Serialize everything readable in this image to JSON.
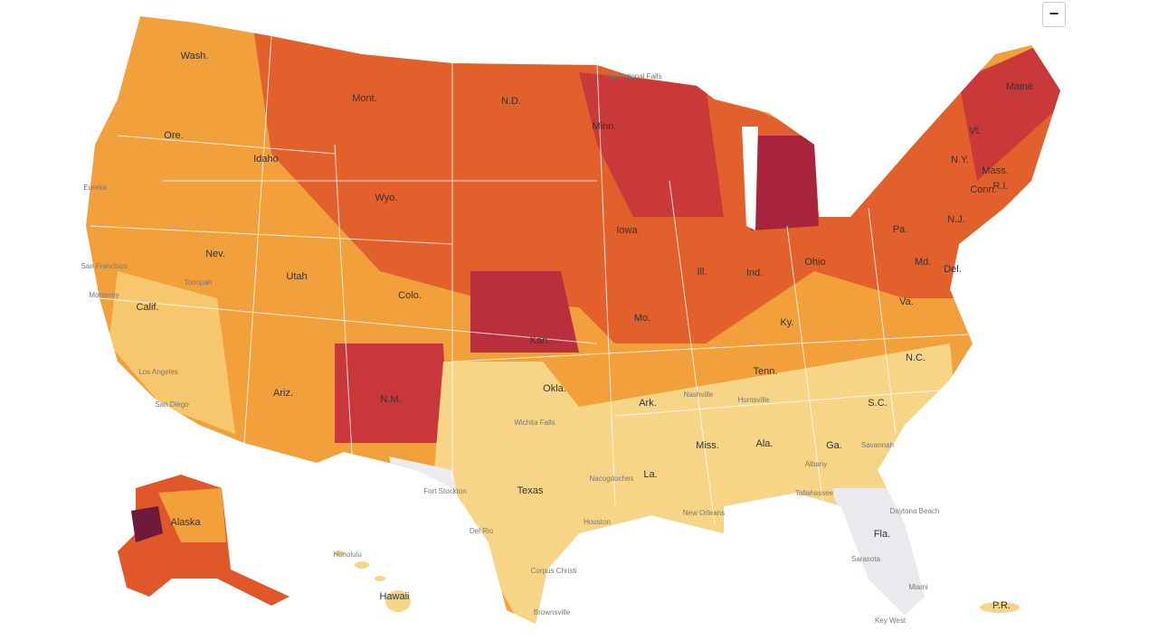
{
  "controls": {
    "zoom_out": "−"
  },
  "state_labels": [
    "Wash.",
    "Ore.",
    "Calif.",
    "Idaho",
    "Nev.",
    "Mont.",
    "Wyo.",
    "Utah",
    "Ariz.",
    "Colo.",
    "N.M.",
    "N.D.",
    "Minn.",
    "Iowa",
    "Kan.",
    "Okla.",
    "Texas",
    "Mo.",
    "Ark.",
    "La.",
    "Miss.",
    "Ala.",
    "Ga.",
    "Tenn.",
    "Ky.",
    "Ind.",
    "Ill.",
    "Ohio",
    "Pa.",
    "N.Y.",
    "N.J.",
    "Md.",
    "Del.",
    "Va.",
    "N.C.",
    "S.C.",
    "Fla.",
    "Mass.",
    "Conn.",
    "R.I.",
    "Vt.",
    "Maine",
    "Alaska",
    "Hawaii",
    "P.R."
  ],
  "city_labels": [
    "San Francisco",
    "Monterey",
    "Los Angeles",
    "San Diego",
    "Tonopah",
    "Fort Stockton",
    "Del Rio",
    "Houston",
    "Corpus Christi",
    "Brownsville",
    "Wichita Falls",
    "Nacogdoches",
    "New Orleans",
    "Tallahassee",
    "Daytona Beach",
    "Sarasota",
    "Miami",
    "Key West",
    "Savannah",
    "Nashville",
    "Huntsville",
    "Eureka",
    "Honolulu",
    "International Falls",
    "Albany"
  ]
}
